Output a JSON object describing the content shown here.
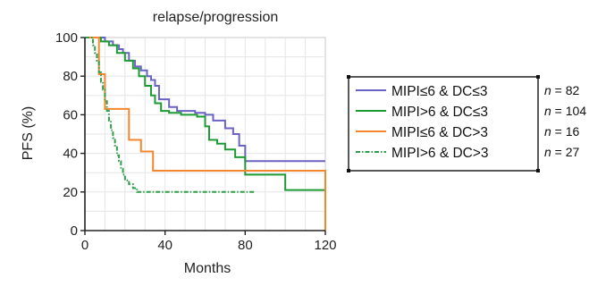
{
  "chart_data": {
    "type": "line",
    "step": true,
    "title": "relapse/progression",
    "xlabel": "Months",
    "ylabel": "PFS (%)",
    "xlim": [
      0,
      120
    ],
    "ylim": [
      0,
      100
    ],
    "xticks": [
      0,
      40,
      80,
      120
    ],
    "yticks": [
      0,
      20,
      40,
      60,
      80,
      100
    ],
    "grid": true,
    "legend_position": "right",
    "series": [
      {
        "name": "MIPI≤6 & DC≤3",
        "n_label": "n = 82",
        "color": "#6a63c4",
        "dash": "solid",
        "x": [
          0,
          6,
          10,
          14,
          17,
          19,
          22,
          25,
          28,
          31,
          33,
          35,
          37,
          42,
          46,
          55,
          60,
          64,
          70,
          74,
          77,
          80,
          120
        ],
        "y": [
          100,
          100,
          98,
          96,
          94,
          92,
          88,
          85,
          83,
          80,
          78,
          75,
          68,
          64,
          62,
          61,
          60,
          57,
          53,
          50,
          44,
          36,
          36
        ]
      },
      {
        "name": "MIPI>6 & DC≤3",
        "n_label": "n = 104",
        "color": "#1e9a35",
        "dash": "solid",
        "x": [
          0,
          5,
          8,
          12,
          16,
          20,
          24,
          27,
          30,
          33,
          35,
          38,
          42,
          48,
          56,
          60,
          62,
          66,
          70,
          75,
          80,
          100,
          120
        ],
        "y": [
          100,
          100,
          98,
          96,
          92,
          88,
          84,
          80,
          75,
          70,
          66,
          62,
          61,
          60,
          59,
          54,
          47,
          45,
          42,
          38,
          29,
          21,
          21
        ]
      },
      {
        "name": "MIPI≤6 & DC>3",
        "n_label": "n = 16",
        "color": "#f4862c",
        "dash": "solid",
        "x": [
          0,
          5,
          7,
          10,
          19,
          22,
          28,
          34,
          60,
          120,
          120
        ],
        "y": [
          100,
          100,
          81,
          63,
          63,
          47,
          41,
          31,
          31,
          31,
          0
        ]
      },
      {
        "name": "MIPI>6 & DC>3",
        "n_label": "n = 27",
        "color": "#2f9e4a",
        "dash": "dashdot",
        "x": [
          0,
          3,
          4,
          5,
          6,
          7,
          8,
          9,
          10,
          11,
          12,
          13,
          14,
          15,
          16,
          17,
          18,
          19,
          20,
          22,
          24,
          26,
          28,
          85
        ],
        "y": [
          100,
          100,
          96,
          92,
          88,
          82,
          77,
          73,
          67,
          62,
          57,
          52,
          48,
          44,
          39,
          36,
          32,
          29,
          26,
          24,
          22,
          20,
          20,
          20
        ]
      }
    ]
  }
}
